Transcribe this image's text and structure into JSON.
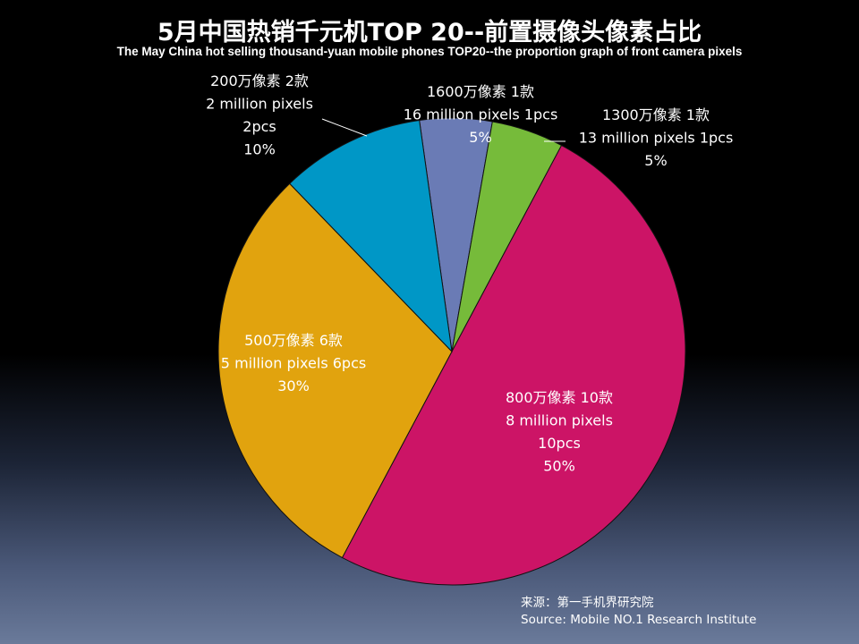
{
  "chart_data": {
    "type": "pie",
    "title": "5月中国热销千元机TOP 20--前置摄像头像素占比",
    "subtitle": "The May  China hot selling thousand-yuan mobile phones TOP20--the proportion graph of front camera pixels",
    "slices": [
      {
        "key": "16mp",
        "value": 5,
        "color": "#6a7bb5",
        "lines": [
          "1600万像素 1款",
          "16 million pixels 1pcs",
          "5%"
        ]
      },
      {
        "key": "13mp",
        "value": 5,
        "color": "#76bb3a",
        "lines": [
          "1300万像素 1款",
          "13 million pixels 1pcs",
          "5%"
        ]
      },
      {
        "key": "8mp",
        "value": 50,
        "color": "#cc1466",
        "lines": [
          "800万像素 10款",
          "8 million pixels",
          "10pcs",
          "50%"
        ]
      },
      {
        "key": "5mp",
        "value": 30,
        "color": "#e1a30e",
        "lines": [
          "500万像素 6款",
          "5 million pixels 6pcs",
          "30%"
        ]
      },
      {
        "key": "2mp",
        "value": 10,
        "color": "#0097c6",
        "lines": [
          "200万像素 2款",
          "2 million pixels",
          "2pcs",
          "10%"
        ]
      }
    ],
    "source_cn": "来源：第一手机界研究院",
    "source_en": "Source: Mobile NO.1 Research Institute"
  }
}
